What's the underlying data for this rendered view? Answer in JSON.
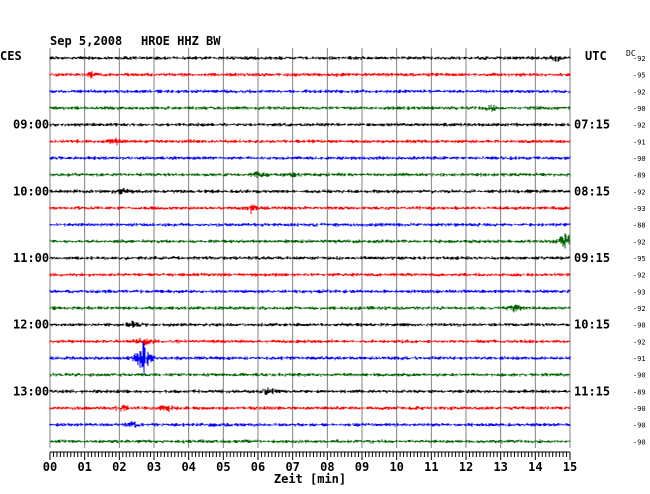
{
  "header": {
    "date": "Sep 5,2008",
    "station": "HROE HHZ BW",
    "left_label": "CES",
    "right_label": "UTC",
    "dc_label": "DC"
  },
  "chart_data": {
    "type": "line",
    "title": "Sep 5,2008   HROE HHZ BW",
    "xlabel": "Zeit [min]",
    "x_ticks": [
      "00",
      "01",
      "02",
      "03",
      "04",
      "05",
      "06",
      "07",
      "08",
      "09",
      "10",
      "11",
      "12",
      "13",
      "14",
      "15"
    ],
    "xlim": [
      0,
      15
    ],
    "left_time_labels": [
      {
        "row": 4,
        "text": "09:00"
      },
      {
        "row": 8,
        "text": "10:00"
      },
      {
        "row": 12,
        "text": "11:00"
      },
      {
        "row": 16,
        "text": "12:00"
      },
      {
        "row": 20,
        "text": "13:00"
      }
    ],
    "right_time_labels": [
      {
        "row": 4,
        "text": "07:15"
      },
      {
        "row": 8,
        "text": "08:15"
      },
      {
        "row": 12,
        "text": "09:15"
      },
      {
        "row": 16,
        "text": "10:15"
      },
      {
        "row": 20,
        "text": "11:15"
      }
    ],
    "trace_colors": [
      "#000000",
      "#ff0000",
      "#0000ff",
      "#006400"
    ],
    "dc_offsets": [
      -92,
      -95,
      -92,
      -90,
      -92,
      -91,
      -90,
      -89,
      -92,
      -93,
      -88,
      -92,
      -95,
      -92,
      -93,
      -92,
      -90,
      -92,
      -91,
      -90,
      -89,
      -90,
      -90,
      -90
    ],
    "events": [
      {
        "row": 0,
        "minute": 14.6,
        "amplitude": 1.6
      },
      {
        "row": 1,
        "minute": 1.2,
        "amplitude": 1.3
      },
      {
        "row": 3,
        "minute": 12.7,
        "amplitude": 1.4
      },
      {
        "row": 5,
        "minute": 1.9,
        "amplitude": 1.4
      },
      {
        "row": 7,
        "minute": 6.0,
        "amplitude": 1.5
      },
      {
        "row": 7,
        "minute": 7.0,
        "amplitude": 1.3
      },
      {
        "row": 8,
        "minute": 2.1,
        "amplitude": 1.4
      },
      {
        "row": 9,
        "minute": 5.8,
        "amplitude": 2.5
      },
      {
        "row": 11,
        "minute": 14.9,
        "amplitude": 5.0
      },
      {
        "row": 15,
        "minute": 13.4,
        "amplitude": 1.5
      },
      {
        "row": 16,
        "minute": 2.4,
        "amplitude": 1.4
      },
      {
        "row": 17,
        "minute": 2.7,
        "amplitude": 2.0
      },
      {
        "row": 18,
        "minute": 2.7,
        "amplitude": 9.0
      },
      {
        "row": 20,
        "minute": 6.3,
        "amplitude": 2.0
      },
      {
        "row": 21,
        "minute": 2.1,
        "amplitude": 1.6
      },
      {
        "row": 21,
        "minute": 3.4,
        "amplitude": 1.6
      },
      {
        "row": 22,
        "minute": 2.4,
        "amplitude": 1.4
      }
    ]
  }
}
